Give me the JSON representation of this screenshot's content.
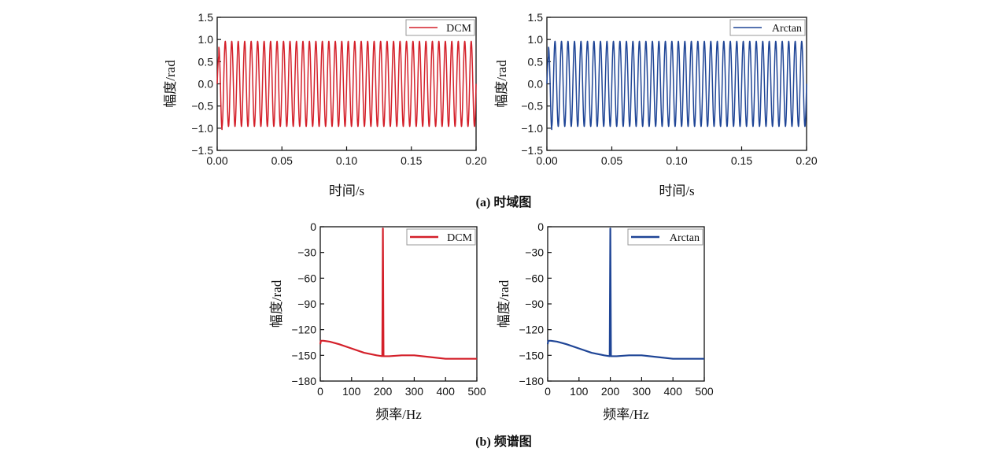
{
  "captions": {
    "a": "(a) 时域图",
    "b": "(b) 频谱图"
  },
  "colors": {
    "DCM": "#d4202a",
    "Arctan": "#1f4596"
  },
  "chart_data": [
    {
      "id": "time-dcm",
      "type": "line",
      "series": [
        {
          "name": "DCM",
          "color": "#d4202a",
          "signal": "sine",
          "frequency_hz": 200,
          "amplitude": 0.96,
          "initial_peak": 0.62,
          "initial_trough": -1.03
        }
      ],
      "xlabel": "时间/s",
      "ylabel": "幅度/rad",
      "xlim": [
        0,
        0.2
      ],
      "ylim": [
        -1.5,
        1.5
      ],
      "xticks": [
        "0.00",
        "0.05",
        "0.10",
        "0.15",
        "0.20"
      ],
      "yticks": [
        "1.5",
        "1.0",
        "0.5",
        "0.0",
        "−0.5",
        "−1.0",
        "−1.5"
      ],
      "legend": "top-right"
    },
    {
      "id": "time-arctan",
      "type": "line",
      "series": [
        {
          "name": "Arctan",
          "color": "#1f4596",
          "signal": "sine",
          "frequency_hz": 200,
          "amplitude": 0.96,
          "initial_peak": 0.62,
          "initial_trough": -1.03
        }
      ],
      "xlabel": "时间/s",
      "ylabel": "幅度/rad",
      "xlim": [
        0,
        0.2
      ],
      "ylim": [
        -1.5,
        1.5
      ],
      "xticks": [
        "0.00",
        "0.05",
        "0.10",
        "0.15",
        "0.20"
      ],
      "yticks": [
        "1.5",
        "1.0",
        "0.5",
        "0.0",
        "−0.5",
        "−1.0",
        "−1.5"
      ],
      "legend": "top-right"
    },
    {
      "id": "freq-dcm",
      "type": "line",
      "series": [
        {
          "name": "DCM",
          "color": "#d4202a",
          "x": [
            0,
            2,
            10,
            30,
            60,
            100,
            140,
            180,
            198,
            200,
            202,
            220,
            260,
            300,
            350,
            400,
            450,
            500
          ],
          "y": [
            -137,
            -133,
            -133,
            -134,
            -137,
            -142,
            -147,
            -150,
            -151,
            -2,
            -151,
            -151,
            -150,
            -150,
            -152,
            -154,
            -154,
            -154
          ]
        }
      ],
      "xlabel": "频率/Hz",
      "ylabel": "幅度/rad",
      "xlim": [
        0,
        500
      ],
      "ylim": [
        -180,
        0
      ],
      "xticks": [
        "0",
        "100",
        "200",
        "300",
        "400",
        "500"
      ],
      "yticks": [
        "0",
        "−30",
        "−60",
        "−90",
        "−120",
        "−150",
        "−180"
      ],
      "legend": "top-right"
    },
    {
      "id": "freq-arctan",
      "type": "line",
      "series": [
        {
          "name": "Arctan",
          "color": "#1f4596",
          "x": [
            0,
            2,
            10,
            30,
            60,
            100,
            140,
            180,
            198,
            200,
            202,
            220,
            260,
            300,
            350,
            400,
            450,
            500
          ],
          "y": [
            -137,
            -133,
            -133,
            -134,
            -137,
            -142,
            -147,
            -150,
            -151,
            -2,
            -151,
            -151,
            -150,
            -150,
            -152,
            -154,
            -154,
            -154
          ]
        }
      ],
      "xlabel": "频率/Hz",
      "ylabel": "幅度/rad",
      "xlim": [
        0,
        500
      ],
      "ylim": [
        -180,
        0
      ],
      "xticks": [
        "0",
        "100",
        "200",
        "300",
        "400",
        "500"
      ],
      "yticks": [
        "0",
        "−30",
        "−60",
        "−90",
        "−120",
        "−150",
        "−180"
      ],
      "legend": "top-right"
    }
  ]
}
